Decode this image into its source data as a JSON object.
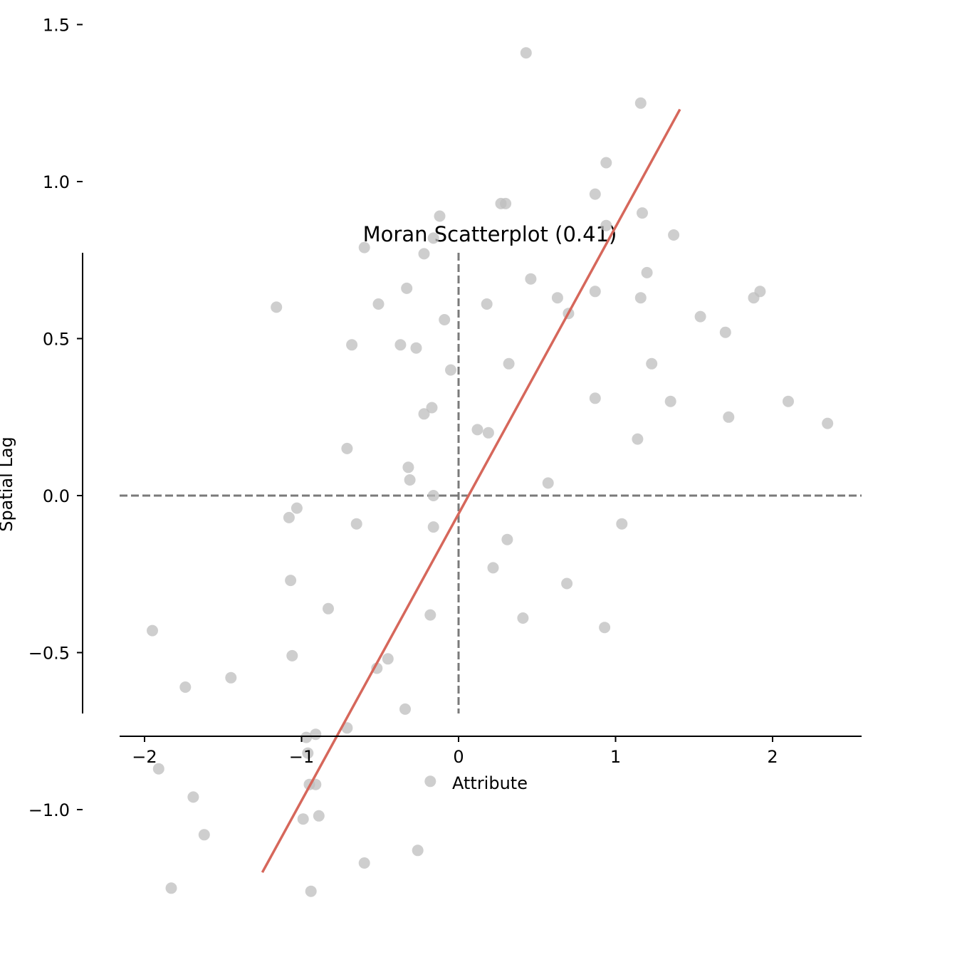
{
  "chart_data": {
    "type": "scatter",
    "title": "Moran Scatterplot (0.41)",
    "xlabel": "Attribute",
    "ylabel": "Spatial Lag",
    "xlim": [
      -2.2,
      2.55
    ],
    "ylim": [
      -1.4,
      1.55
    ],
    "x_ticks": [
      {
        "value": -2,
        "label": "−2"
      },
      {
        "value": -1,
        "label": "−1"
      },
      {
        "value": 0,
        "label": "0"
      },
      {
        "value": 1,
        "label": "1"
      },
      {
        "value": 2,
        "label": "2"
      }
    ],
    "y_ticks": [
      {
        "value": -1.0,
        "label": "−1.0"
      },
      {
        "value": -0.5,
        "label": "−0.5"
      },
      {
        "value": 0.0,
        "label": "0.0"
      },
      {
        "value": 0.5,
        "label": "0.5"
      },
      {
        "value": 1.0,
        "label": "1.0"
      },
      {
        "value": 1.5,
        "label": "1.5"
      }
    ],
    "regression_line": {
      "x": [
        -1.25,
        1.41
      ],
      "y": [
        -1.2,
        1.23
      ],
      "color": "#d6675b"
    },
    "reference_lines": {
      "vertical_x": 0,
      "horizontal_y": 0,
      "color": "#7a7a7a",
      "style": "dashed"
    },
    "point_color": "#bdbdbd",
    "points": [
      [
        0.43,
        1.41
      ],
      [
        1.16,
        1.25
      ],
      [
        0.94,
        1.06
      ],
      [
        0.87,
        0.96
      ],
      [
        0.27,
        0.93
      ],
      [
        0.3,
        0.93
      ],
      [
        -0.12,
        0.89
      ],
      [
        1.17,
        0.9
      ],
      [
        0.94,
        0.86
      ],
      [
        1.37,
        0.83
      ],
      [
        -0.16,
        0.82
      ],
      [
        -0.6,
        0.79
      ],
      [
        -0.22,
        0.77
      ],
      [
        1.2,
        0.71
      ],
      [
        0.46,
        0.69
      ],
      [
        -0.33,
        0.66
      ],
      [
        0.87,
        0.65
      ],
      [
        1.92,
        0.65
      ],
      [
        1.88,
        0.63
      ],
      [
        0.63,
        0.63
      ],
      [
        1.16,
        0.63
      ],
      [
        -1.16,
        0.6
      ],
      [
        -0.51,
        0.61
      ],
      [
        0.18,
        0.61
      ],
      [
        0.7,
        0.58
      ],
      [
        1.54,
        0.57
      ],
      [
        -0.09,
        0.56
      ],
      [
        1.7,
        0.52
      ],
      [
        -0.68,
        0.48
      ],
      [
        -0.37,
        0.48
      ],
      [
        -0.27,
        0.47
      ],
      [
        1.23,
        0.42
      ],
      [
        0.32,
        0.42
      ],
      [
        -0.05,
        0.4
      ],
      [
        0.87,
        0.31
      ],
      [
        1.35,
        0.3
      ],
      [
        2.1,
        0.3
      ],
      [
        -0.17,
        0.28
      ],
      [
        -0.22,
        0.26
      ],
      [
        1.72,
        0.25
      ],
      [
        2.35,
        0.23
      ],
      [
        0.12,
        0.21
      ],
      [
        0.19,
        0.2
      ],
      [
        1.14,
        0.18
      ],
      [
        -0.71,
        0.15
      ],
      [
        -0.32,
        0.09
      ],
      [
        -0.31,
        0.05
      ],
      [
        0.57,
        0.04
      ],
      [
        -0.16,
        0.0
      ],
      [
        -1.03,
        -0.04
      ],
      [
        -1.08,
        -0.07
      ],
      [
        -0.65,
        -0.09
      ],
      [
        -0.16,
        -0.1
      ],
      [
        1.04,
        -0.09
      ],
      [
        0.31,
        -0.14
      ],
      [
        0.22,
        -0.23
      ],
      [
        -1.07,
        -0.27
      ],
      [
        0.69,
        -0.28
      ],
      [
        -0.83,
        -0.36
      ],
      [
        -0.18,
        -0.38
      ],
      [
        0.41,
        -0.39
      ],
      [
        0.93,
        -0.42
      ],
      [
        -1.95,
        -0.43
      ],
      [
        -1.06,
        -0.51
      ],
      [
        -0.45,
        -0.52
      ],
      [
        -0.52,
        -0.55
      ],
      [
        -1.45,
        -0.58
      ],
      [
        -1.74,
        -0.61
      ],
      [
        -0.34,
        -0.68
      ],
      [
        -0.71,
        -0.74
      ],
      [
        -0.97,
        -0.77
      ],
      [
        -0.91,
        -0.76
      ],
      [
        -0.96,
        -0.82
      ],
      [
        -1.91,
        -0.87
      ],
      [
        -0.18,
        -0.91
      ],
      [
        -0.95,
        -0.92
      ],
      [
        -0.91,
        -0.92
      ],
      [
        -1.69,
        -0.96
      ],
      [
        -0.89,
        -1.02
      ],
      [
        -0.99,
        -1.03
      ],
      [
        -1.62,
        -1.08
      ],
      [
        -0.26,
        -1.13
      ],
      [
        -0.6,
        -1.17
      ],
      [
        -1.83,
        -1.25
      ],
      [
        -0.94,
        -1.26
      ]
    ]
  }
}
